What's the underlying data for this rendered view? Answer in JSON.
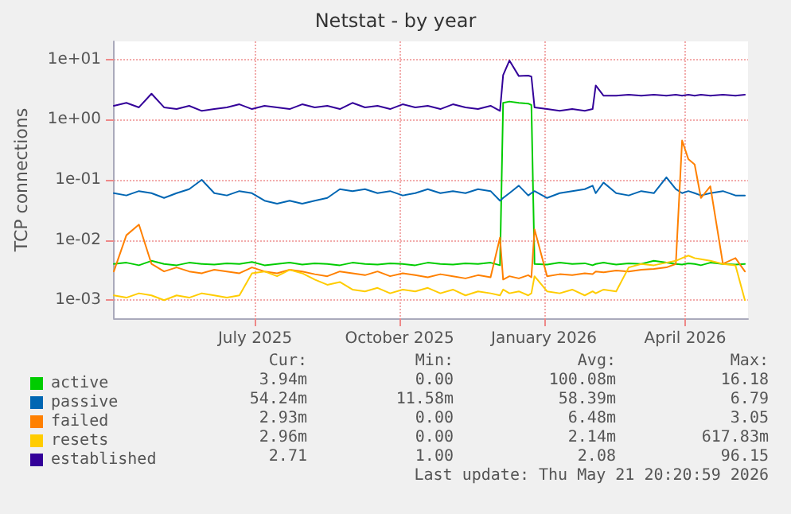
{
  "chart_data": {
    "type": "line",
    "title": "Netstat - by year",
    "ylabel": "TCP connections",
    "log": "y",
    "grid": true,
    "legend": "bottom left",
    "marker": "none",
    "line_style": "solid",
    "x": [
      "2025-04-02",
      "2025-04-10",
      "2025-04-18",
      "2025-04-26",
      "2025-05-04",
      "2025-05-12",
      "2025-05-20",
      "2025-05-28",
      "2025-06-05",
      "2025-06-13",
      "2025-06-21",
      "2025-06-29",
      "2025-07-07",
      "2025-07-15",
      "2025-07-23",
      "2025-07-31",
      "2025-08-08",
      "2025-08-16",
      "2025-08-24",
      "2025-09-01",
      "2025-09-09",
      "2025-09-17",
      "2025-09-25",
      "2025-10-03",
      "2025-10-11",
      "2025-10-19",
      "2025-10-27",
      "2025-11-04",
      "2025-11-12",
      "2025-11-20",
      "2025-11-28",
      "2025-12-04",
      "2025-12-06",
      "2025-12-10",
      "2025-12-16",
      "2025-12-22",
      "2025-12-24",
      "2025-12-26",
      "2026-01-03",
      "2026-01-11",
      "2026-01-19",
      "2026-01-27",
      "2026-02-01",
      "2026-02-03",
      "2026-02-08",
      "2026-02-16",
      "2026-02-24",
      "2026-03-04",
      "2026-03-12",
      "2026-03-20",
      "2026-03-26",
      "2026-03-30",
      "2026-04-03",
      "2026-04-07",
      "2026-04-11",
      "2026-04-17",
      "2026-04-25",
      "2026-05-03",
      "2026-05-09"
    ],
    "xlim": [
      "2025-04-02",
      "2026-05-11"
    ],
    "xticks": [
      {
        "value": "2025-07-01",
        "label": "July 2025"
      },
      {
        "value": "2025-10-01",
        "label": "October 2025"
      },
      {
        "value": "2026-01-01",
        "label": "January 2026"
      },
      {
        "value": "2026-04-01",
        "label": "April 2026"
      }
    ],
    "ylim": [
      0.0005,
      20
    ],
    "yticks": [
      {
        "value": 0.001,
        "label": "1e-03"
      },
      {
        "value": 0.01,
        "label": "1e-02"
      },
      {
        "value": 0.1,
        "label": "1e-01"
      },
      {
        "value": 1,
        "label": "1e+00"
      },
      {
        "value": 10,
        "label": "1e+01"
      }
    ],
    "series": [
      {
        "name": "active",
        "color": "#00cc00",
        "values": [
          0.004,
          0.0042,
          0.0038,
          0.0045,
          0.004,
          0.0038,
          0.0042,
          0.004,
          0.0039,
          0.0041,
          0.004,
          0.0043,
          0.0038,
          0.004,
          0.0042,
          0.0039,
          0.0041,
          0.004,
          0.0038,
          0.0042,
          0.004,
          0.0039,
          0.0041,
          0.004,
          0.0038,
          0.0042,
          0.004,
          0.0039,
          0.0041,
          0.004,
          0.0042,
          0.0038,
          1.9,
          2.0,
          1.9,
          1.85,
          1.75,
          0.004,
          0.0039,
          0.0042,
          0.004,
          0.0041,
          0.0038,
          0.004,
          0.0042,
          0.0039,
          0.0041,
          0.004,
          0.0045,
          0.0042,
          0.004,
          0.0039,
          0.0041,
          0.004,
          0.0038,
          0.0042,
          0.004,
          0.0039,
          0.004
        ]
      },
      {
        "name": "passive",
        "color": "#0066b3",
        "values": [
          0.06,
          0.055,
          0.065,
          0.06,
          0.05,
          0.06,
          0.07,
          0.1,
          0.06,
          0.055,
          0.065,
          0.06,
          0.045,
          0.04,
          0.045,
          0.04,
          0.045,
          0.05,
          0.07,
          0.065,
          0.07,
          0.06,
          0.065,
          0.055,
          0.06,
          0.07,
          0.06,
          0.065,
          0.06,
          0.07,
          0.065,
          0.045,
          0.05,
          0.06,
          0.08,
          0.055,
          0.06,
          0.065,
          0.05,
          0.06,
          0.065,
          0.07,
          0.08,
          0.06,
          0.09,
          0.06,
          0.055,
          0.065,
          0.06,
          0.11,
          0.07,
          0.06,
          0.065,
          0.06,
          0.055,
          0.06,
          0.065,
          0.055,
          0.055
        ]
      },
      {
        "name": "failed",
        "color": "#ff8000",
        "values": [
          0.003,
          0.012,
          0.018,
          0.004,
          0.003,
          0.0035,
          0.003,
          0.0028,
          0.0032,
          0.003,
          0.0028,
          0.0035,
          0.003,
          0.0028,
          0.0032,
          0.003,
          0.0027,
          0.0025,
          0.003,
          0.0028,
          0.0026,
          0.003,
          0.0025,
          0.0028,
          0.0026,
          0.0024,
          0.0027,
          0.0025,
          0.0023,
          0.0026,
          0.0024,
          0.011,
          0.0022,
          0.0025,
          0.0023,
          0.0026,
          0.0024,
          0.015,
          0.0025,
          0.0027,
          0.0026,
          0.0028,
          0.0027,
          0.003,
          0.0029,
          0.0031,
          0.003,
          0.0032,
          0.0033,
          0.0035,
          0.004,
          0.45,
          0.22,
          0.18,
          0.05,
          0.078,
          0.004,
          0.005,
          0.003
        ]
      },
      {
        "name": "resets",
        "color": "#ffcc00",
        "values": [
          0.0012,
          0.0011,
          0.0013,
          0.0012,
          0.001,
          0.0012,
          0.0011,
          0.0013,
          0.0012,
          0.0011,
          0.0012,
          0.0028,
          0.003,
          0.0025,
          0.0032,
          0.0028,
          0.0022,
          0.0018,
          0.002,
          0.0015,
          0.0014,
          0.0016,
          0.0013,
          0.0015,
          0.0014,
          0.0016,
          0.0013,
          0.0015,
          0.0012,
          0.0014,
          0.0013,
          0.0012,
          0.0015,
          0.0013,
          0.0014,
          0.0012,
          0.0013,
          0.0025,
          0.0014,
          0.0013,
          0.0015,
          0.0012,
          0.0014,
          0.0013,
          0.0015,
          0.0014,
          0.0035,
          0.004,
          0.0038,
          0.0042,
          0.0045,
          0.005,
          0.0055,
          0.005,
          0.0048,
          0.0045,
          0.004,
          0.0038,
          0.001
        ]
      },
      {
        "name": "established",
        "color": "#330099",
        "values": [
          1.7,
          1.9,
          1.6,
          2.7,
          1.6,
          1.5,
          1.7,
          1.4,
          1.5,
          1.6,
          1.8,
          1.5,
          1.7,
          1.6,
          1.5,
          1.8,
          1.6,
          1.7,
          1.5,
          1.9,
          1.6,
          1.7,
          1.5,
          1.8,
          1.6,
          1.7,
          1.5,
          1.8,
          1.6,
          1.5,
          1.7,
          1.4,
          5.5,
          9.6,
          5.3,
          5.4,
          5.2,
          1.6,
          1.5,
          1.4,
          1.5,
          1.4,
          1.5,
          3.7,
          2.5,
          2.5,
          2.6,
          2.5,
          2.6,
          2.5,
          2.6,
          2.5,
          2.6,
          2.5,
          2.6,
          2.5,
          2.6,
          2.5,
          2.6
        ]
      }
    ],
    "annotations": [
      "Cur:",
      "Min:",
      "Avg:",
      "Max:",
      "3.94m",
      "0.00",
      "100.08m",
      "16.18",
      "54.24m",
      "11.58m",
      "58.39m",
      "6.79",
      "2.93m",
      "0.00",
      "6.48m",
      "3.05",
      "2.96m",
      "0.00",
      "2.14m",
      "617.83m",
      "2.71",
      "1.00",
      "2.08",
      "96.15",
      "Last update: Thu May 21 20:20:59 2026"
    ]
  }
}
